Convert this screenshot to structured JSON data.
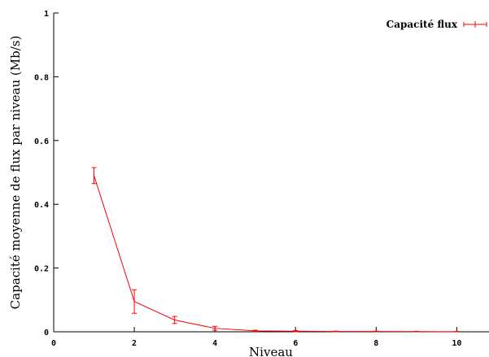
{
  "chart_data": {
    "type": "line",
    "title": "",
    "xlabel": "Niveau",
    "ylabel": "Capacité moyenne de flux par niveau (Mb/s)",
    "xlim": [
      0,
      10.8
    ],
    "ylim": [
      0,
      1
    ],
    "x_ticks": [
      "0",
      "2",
      "4",
      "6",
      "8",
      "10"
    ],
    "y_ticks": [
      "0",
      "0.2",
      "0.4",
      "0.6",
      "0.8",
      "1"
    ],
    "grid": false,
    "legend_position": "top-right",
    "series": [
      {
        "name": "Capacité flux",
        "color": "#ff0000",
        "error_bars": true,
        "points": [
          {
            "x": 1,
            "y": 0.49,
            "err": 0.025
          },
          {
            "x": 2,
            "y": 0.095,
            "err": 0.037
          },
          {
            "x": 3,
            "y": 0.037,
            "err": 0.011
          },
          {
            "x": 4,
            "y": 0.011,
            "err": 0.006
          },
          {
            "x": 5,
            "y": 0.003,
            "err": 0.002
          },
          {
            "x": 6,
            "y": 0.002,
            "err": 0.002
          },
          {
            "x": 7,
            "y": 0.001,
            "err": 0.001
          },
          {
            "x": 8,
            "y": 0.001,
            "err": 0.001
          },
          {
            "x": 9,
            "y": 0.0005,
            "err": 0.001
          },
          {
            "x": 10,
            "y": 0.0003,
            "err": 0.001
          }
        ]
      }
    ]
  }
}
